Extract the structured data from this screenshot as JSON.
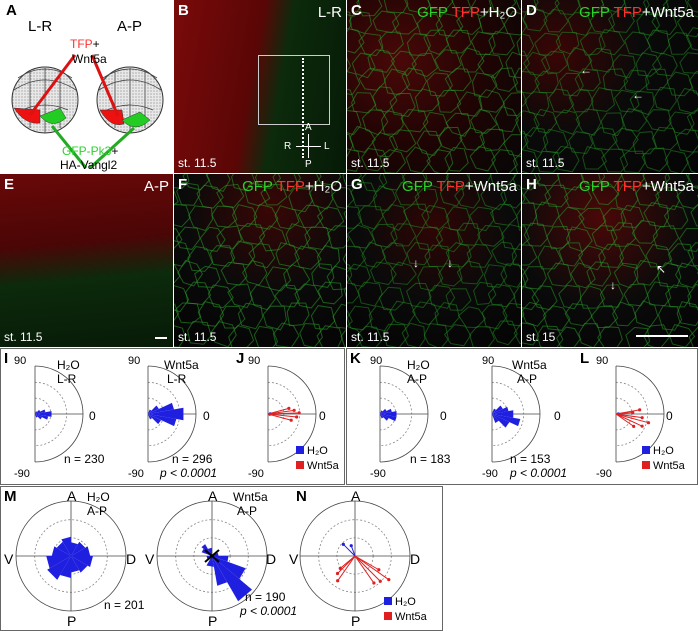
{
  "schematic": {
    "label": "A",
    "left_title": "L-R",
    "right_title": "A-P",
    "tfp": "TFP",
    "plus": "+",
    "wnt": "Wnt5a",
    "gfp": "GFP-Pk3",
    "ha": "HA-Vangl2"
  },
  "images": {
    "B": {
      "label": "B",
      "title": "L-R",
      "stage": "st. 11.5",
      "axis": {
        "a": "A",
        "p": "P",
        "r": "R",
        "l": "L"
      }
    },
    "C": {
      "label": "C",
      "gfp": "GFP",
      "tfp": "TFP",
      "cond": "+H₂O",
      "stage": "st. 11.5"
    },
    "D": {
      "label": "D",
      "gfp": "GFP",
      "tfp": "TFP",
      "cond": "+Wnt5a",
      "stage": "st. 11.5"
    },
    "E": {
      "label": "E",
      "title": "A-P",
      "stage": "st. 11.5"
    },
    "F": {
      "label": "F",
      "gfp": "GFP",
      "tfp": "TFP",
      "cond": "+H₂O",
      "stage": "st. 11.5"
    },
    "G": {
      "label": "G",
      "gfp": "GFP",
      "tfp": "TFP",
      "cond": "+Wnt5a",
      "stage": "st. 11.5"
    },
    "H": {
      "label": "H",
      "gfp": "GFP",
      "tfp": "TFP",
      "cond": "+Wnt5a",
      "stage": "st. 15"
    }
  },
  "polar": {
    "I": {
      "label": "I",
      "h2o_title": "H₂O",
      "h2o_axis": "L-R",
      "wnt_title": "Wnt5a",
      "wnt_axis": "L-R",
      "h2o_n": "n = 230",
      "wnt_n": "n = 296",
      "p": "p < 0.0001",
      "top": "90",
      "bottom": "-90",
      "zero": "0"
    },
    "J": {
      "label": "J",
      "top": "90",
      "bottom": "-90",
      "zero": "0",
      "legend_h2o": "H₂O",
      "legend_wnt": "Wnt5a"
    },
    "K": {
      "label": "K",
      "h2o_title": "H₂O",
      "h2o_axis": "A-P",
      "wnt_title": "Wnt5a",
      "wnt_axis": "A-P",
      "h2o_n": "n = 183",
      "wnt_n": "n  = 153",
      "p": "p < 0.0001",
      "top": "90",
      "bottom": "-90",
      "zero": "0"
    },
    "L": {
      "label": "L",
      "top": "90",
      "bottom": "-90",
      "zero": "0",
      "legend_h2o": "H₂O",
      "legend_wnt": "Wnt5a"
    },
    "M": {
      "label": "M",
      "h2o_title": "H₂O",
      "h2o_axis": "A-P",
      "wnt_title": "Wnt5a",
      "wnt_axis": "A-P",
      "h2o_n": "n = 201",
      "wnt_n": "n = 190",
      "p": "p < 0.0001",
      "a": "A",
      "p_dir": "P",
      "v": "V",
      "d": "D"
    },
    "N": {
      "label": "N",
      "a": "A",
      "p_dir": "P",
      "v": "V",
      "d": "D",
      "legend_h2o": "H₂O",
      "legend_wnt": "Wnt5a"
    }
  },
  "colors": {
    "h2o": "#1f1fe0",
    "wnt": "#e02020",
    "gfp": "#2bd12b",
    "tfp": "#ff3030"
  }
}
